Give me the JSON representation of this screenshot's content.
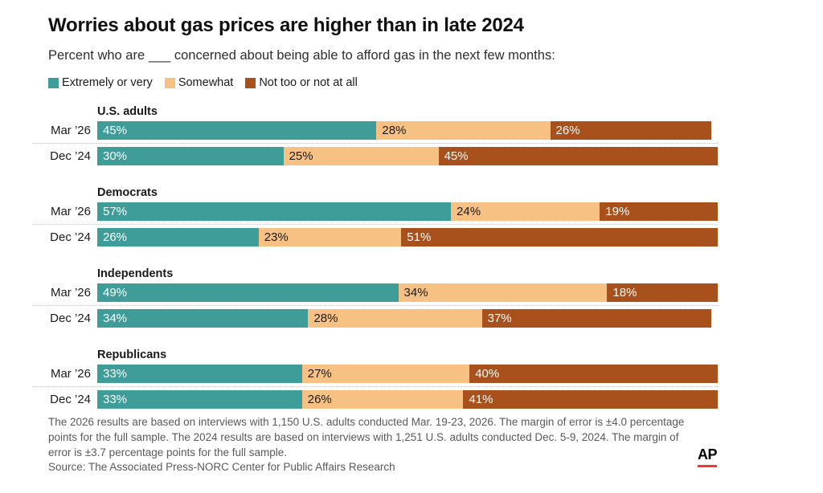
{
  "page": {
    "title": "Worries about gas prices are higher than in late 2024",
    "subtitle": "Percent who are ___ concerned about being able to afford gas in the next few months:",
    "notes": "The 2026 results are based on interviews with 1,150 U.S. adults conducted Mar. 19-23, 2026. The margin of error is ±4.0 percentage points for the full sample. The 2024 results are based on interviews with 1,251 U.S. adults conducted Dec. 5-9, 2024. The margin of error is ±3.7 percentage points for the full sample.",
    "source": "Source: The Associated Press-NORC Center for Public Affairs Research",
    "logo_text": "AP"
  },
  "colors": {
    "extremely_or_very": "#3e9d99",
    "somewhat": "#f6c183",
    "not_too_or_not_at_all": "#a9511d",
    "ap_red": "#ef392e",
    "text_dark": "#1a1a1a",
    "text_light": "#ffffff",
    "note_gray": "#595959",
    "separator_gray": "#c9c9c9"
  },
  "legend": {
    "items": [
      {
        "label": "Extremely or very",
        "color": "#3e9d99",
        "value_text_color": "#ffffff"
      },
      {
        "label": "Somewhat",
        "color": "#f6c183",
        "value_text_color": "#1a1a1a"
      },
      {
        "label": "Not too or not at all",
        "color": "#a9511d",
        "value_text_color": "#ffffff"
      }
    ]
  },
  "chart_data": {
    "type": "bar",
    "stacked": true,
    "orientation": "horizontal",
    "value_suffix": "%",
    "xlim": [
      0,
      100
    ],
    "grid": false,
    "legend_position": "top",
    "series_names": [
      "Extremely or very",
      "Somewhat",
      "Not too or not at all"
    ],
    "groups": [
      {
        "label": "U.S. adults",
        "rows": [
          {
            "label": "Mar ’26",
            "values": [
              45,
              28,
              26
            ]
          },
          {
            "label": "Dec ’24",
            "values": [
              30,
              25,
              45
            ]
          }
        ]
      },
      {
        "label": "Democrats",
        "rows": [
          {
            "label": "Mar ’26",
            "values": [
              57,
              24,
              19
            ]
          },
          {
            "label": "Dec ’24",
            "values": [
              26,
              23,
              51
            ]
          }
        ]
      },
      {
        "label": "Independents",
        "rows": [
          {
            "label": "Mar ’26",
            "values": [
              49,
              34,
              18
            ]
          },
          {
            "label": "Dec ’24",
            "values": [
              34,
              28,
              37
            ]
          }
        ]
      },
      {
        "label": "Republicans",
        "rows": [
          {
            "label": "Mar ’26",
            "values": [
              33,
              27,
              40
            ]
          },
          {
            "label": "Dec ’24",
            "values": [
              33,
              26,
              41
            ]
          }
        ]
      }
    ]
  }
}
